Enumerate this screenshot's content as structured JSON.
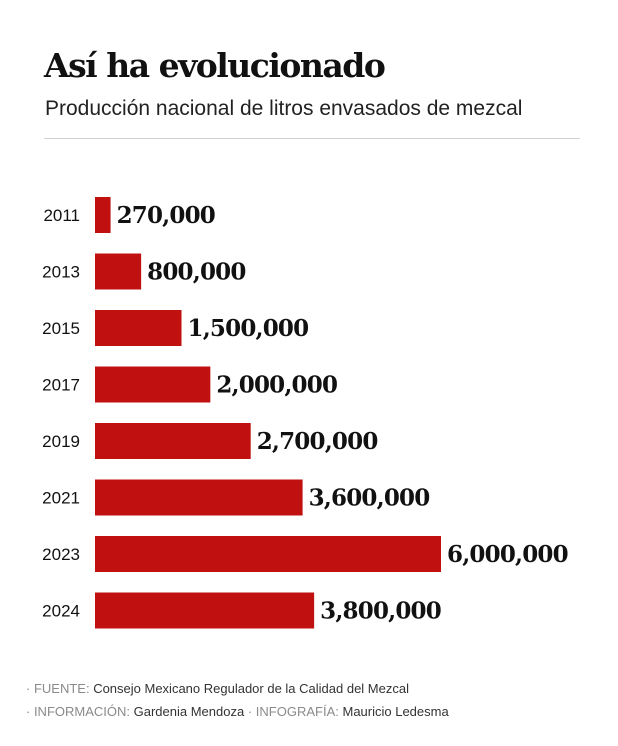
{
  "header": {
    "title": "Así ha evolucionado",
    "subtitle": "Producción nacional de litros envasados de mezcal"
  },
  "chart_data": {
    "type": "bar",
    "orientation": "horizontal",
    "categories": [
      "2011",
      "2013",
      "2015",
      "2017",
      "2019",
      "2021",
      "2023",
      "2024"
    ],
    "values": [
      270000,
      800000,
      1500000,
      2000000,
      2700000,
      3600000,
      6000000,
      3800000
    ],
    "value_labels": [
      "270,000",
      "800,000",
      "1,500,000",
      "2,000,000",
      "2,700,000",
      "3,600,000",
      "6,000,000",
      "3,800,000"
    ],
    "xlim": [
      0,
      6000000
    ],
    "grid": false,
    "legend": "none",
    "bar_color": "#c01010"
  },
  "footer": {
    "source_key": "· FUENTE:",
    "source_value": "Consejo Mexicano Regulador de la Calidad del Mezcal",
    "info_key": "· INFORMACIÓN:",
    "info_value": "Gardenia Mendoza",
    "separator": "·",
    "graphics_key": "INFOGRAFÍA:",
    "graphics_value": "Mauricio Ledesma"
  },
  "colors": {
    "accent": "#c01010",
    "text": "#111111",
    "muted": "#8a8a8a"
  }
}
